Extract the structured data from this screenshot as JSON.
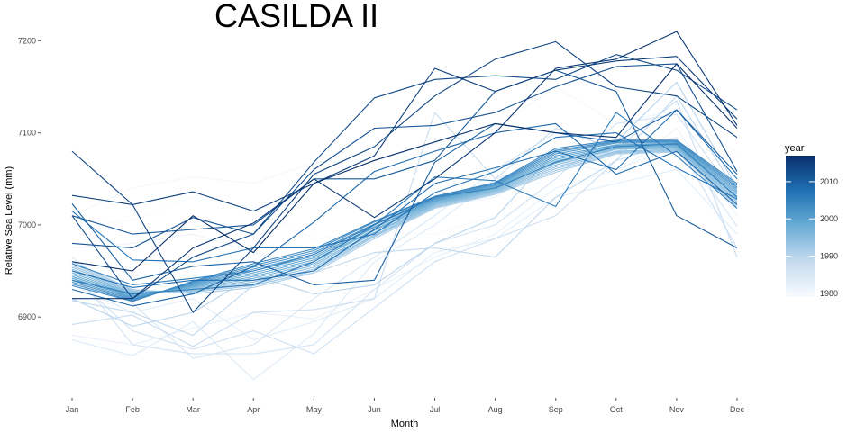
{
  "chart_data": {
    "type": "line",
    "title": "CASILDA II",
    "xlabel": "Month",
    "ylabel": "Relative Sea Level (mm)",
    "categories": [
      "Jan",
      "Feb",
      "Mar",
      "Apr",
      "May",
      "Jun",
      "Jul",
      "Aug",
      "Sep",
      "Oct",
      "Nov",
      "Dec"
    ],
    "ylim": [
      6820,
      7215
    ],
    "yticks": [
      6900,
      7000,
      7100,
      7200
    ],
    "grid": false,
    "legend": {
      "title": "year",
      "type": "continuous",
      "range": [
        1979,
        2017
      ],
      "ticks": [
        1980,
        1990,
        2000,
        2010
      ],
      "colors": [
        "#f7fbff",
        "#c6dbef",
        "#6baed6",
        "#2171b5",
        "#08306b"
      ],
      "placement": "right"
    },
    "series": [
      {
        "year": 1979,
        "values": [
          6998,
          7005,
          7030,
          7018,
          6985,
          6992,
          6990,
          7010,
          7060,
          7075,
          7085,
          7042
        ]
      },
      {
        "year": 1980,
        "values": [
          7010,
          7040,
          7052,
          7045,
          7068,
          7070,
          7088,
          7105,
          7150,
          7110,
          7125,
          7078
        ]
      },
      {
        "year": 1981,
        "values": [
          6975,
          6980,
          6990,
          6970,
          6950,
          6985,
          7020,
          7030,
          7070,
          7055,
          7105,
          7010
        ]
      },
      {
        "year": 1982,
        "values": [
          6880,
          6870,
          6888,
          6905,
          6898,
          6930,
          6965,
          6990,
          7040,
          7060,
          7085,
          7000
        ]
      },
      {
        "year": 1983,
        "values": [
          6935,
          6905,
          6920,
          6875,
          6895,
          6920,
          6970,
          6985,
          7030,
          7045,
          7060,
          6990
        ]
      },
      {
        "year": 1984,
        "values": [
          6875,
          6858,
          6895,
          6832,
          6882,
          6960,
          7000,
          7050,
          7070,
          7080,
          7095,
          6998
        ]
      },
      {
        "year": 1985,
        "values": [
          6965,
          6915,
          6855,
          6870,
          6920,
          6965,
          7010,
          7060,
          7100,
          7090,
          7080,
          7020
        ]
      },
      {
        "year": 1986,
        "values": [
          6952,
          6870,
          6860,
          6860,
          6870,
          6930,
          6980,
          7000,
          7050,
          7110,
          7120,
          7030
        ]
      },
      {
        "year": 1987,
        "values": [
          6945,
          6885,
          6865,
          6885,
          6860,
          6910,
          6960,
          6985,
          7010,
          7070,
          7090,
          6975
        ]
      },
      {
        "year": 1988,
        "values": [
          6892,
          6902,
          6868,
          6905,
          6908,
          6920,
          7122,
          7050,
          7105,
          7082,
          7135,
          6965
        ]
      },
      {
        "year": 1989,
        "values": [
          6918,
          6905,
          6880,
          6935,
          6948,
          6970,
          6975,
          6965,
          7030,
          7070,
          7140,
          7035
        ]
      },
      {
        "year": 1990,
        "values": [
          6920,
          6890,
          6905,
          6945,
          6925,
          6935,
          6980,
          7008,
          7080,
          7090,
          7155,
          7040
        ]
      },
      {
        "year": 1991,
        "values": [
          6960,
          6930,
          6925,
          6932,
          6948,
          6985,
          7018,
          7033,
          7057,
          7077,
          7079,
          7019
        ]
      },
      {
        "year": 1992,
        "values": [
          6958,
          6929,
          6927,
          6934,
          6950,
          6987,
          7019,
          7034,
          7059,
          7078,
          7080,
          7021
        ]
      },
      {
        "year": 1993,
        "values": [
          6956,
          6928,
          6928,
          6936,
          6952,
          6988,
          7020,
          7035,
          7061,
          7079,
          7081,
          7023
        ]
      },
      {
        "year": 1994,
        "values": [
          6954,
          6927,
          6929,
          6938,
          6954,
          6989,
          7021,
          7036,
          7063,
          7080,
          7082,
          7025
        ]
      },
      {
        "year": 1995,
        "values": [
          6952,
          6926,
          6930,
          6940,
          6956,
          6991,
          7022,
          7037,
          7065,
          7082,
          7083,
          7027
        ]
      },
      {
        "year": 1996,
        "values": [
          6950,
          6925,
          6931,
          6942,
          6958,
          6992,
          7023,
          7038,
          7067,
          7083,
          7084,
          7029
        ]
      },
      {
        "year": 1997,
        "values": [
          6948,
          6924,
          6932,
          6944,
          6960,
          6994,
          7024,
          7039,
          7069,
          7084,
          7085,
          7031
        ]
      },
      {
        "year": 1998,
        "values": [
          6946,
          6923,
          6933,
          6946,
          6962,
          6995,
          7025,
          7040,
          7071,
          7085,
          7086,
          7033
        ]
      },
      {
        "year": 1999,
        "values": [
          6944,
          6922,
          6934,
          6948,
          6964,
          6997,
          7026,
          7041,
          7073,
          7086,
          7087,
          7035
        ]
      },
      {
        "year": 2000,
        "values": [
          6942,
          6921,
          6935,
          6950,
          6966,
          6998,
          7027,
          7042,
          7075,
          7087,
          7088,
          7037
        ]
      },
      {
        "year": 2001,
        "values": [
          6940,
          6920,
          6936,
          6952,
          6968,
          7000,
          7028,
          7043,
          7077,
          7089,
          7089,
          7039
        ]
      },
      {
        "year": 2002,
        "values": [
          6938,
          6919,
          6937,
          6954,
          6970,
          7001,
          7029,
          7044,
          7079,
          7090,
          7090,
          7041
        ]
      },
      {
        "year": 2003,
        "values": [
          6936,
          6918,
          6938,
          6956,
          6972,
          7003,
          7030,
          7045,
          7081,
          7091,
          7091,
          7043
        ]
      },
      {
        "year": 2004,
        "values": [
          6934,
          6917,
          6939,
          6958,
          6974,
          7004,
          7031,
          7046,
          7083,
          7092,
          7092,
          7045
        ]
      },
      {
        "year": 2005,
        "values": [
          6958,
          6935,
          6942,
          6950,
          6968,
          7000,
          7030,
          7040,
          7068,
          7085,
          7088,
          7030
        ]
      },
      {
        "year": 2006,
        "values": [
          6940,
          6925,
          6930,
          6935,
          6960,
          7000,
          7052,
          7048,
          7020,
          7122,
          7075,
          7018
        ]
      },
      {
        "year": 2007,
        "values": [
          7015,
          6962,
          6960,
          6975,
          6975,
          6990,
          7035,
          7058,
          7095,
          7100,
          7062,
          7028
        ]
      },
      {
        "year": 2008,
        "values": [
          6950,
          6932,
          6940,
          6940,
          6950,
          6995,
          7045,
          7062,
          7080,
          7060,
          7125,
          7050
        ]
      },
      {
        "year": 2009,
        "values": [
          6930,
          6912,
          6925,
          6955,
          7003,
          7058,
          7080,
          7100,
          7110,
          7055,
          7080,
          7022
        ]
      },
      {
        "year": 2010,
        "values": [
          7023,
          6940,
          6955,
          6960,
          6935,
          6940,
          7068,
          7110,
          7100,
          7090,
          7125,
          7055
        ]
      },
      {
        "year": 2011,
        "values": [
          7010,
          6990,
          6995,
          7000,
          7050,
          7050,
          7070,
          7145,
          7168,
          7145,
          7010,
          6975
        ]
      },
      {
        "year": 2012,
        "values": [
          6980,
          6975,
          7008,
          6990,
          7060,
          7105,
          7108,
          7122,
          7150,
          7172,
          7175,
          7058
        ]
      },
      {
        "year": 2013,
        "values": [
          7010,
          6920,
          6965,
          6990,
          7068,
          7138,
          7158,
          7162,
          7158,
          7185,
          7168,
          7125
        ]
      },
      {
        "year": 2014,
        "values": [
          7080,
          7022,
          6905,
          6975,
          7055,
          7085,
          7140,
          7180,
          7199,
          7150,
          7140,
          7095
        ]
      },
      {
        "year": 2015,
        "values": [
          7032,
          7022,
          7036,
          7015,
          7045,
          7075,
          7170,
          7145,
          7168,
          7178,
          7183,
          7115
        ]
      },
      {
        "year": 2016,
        "values": [
          6920,
          6920,
          6975,
          7002,
          7050,
          7008,
          7050,
          7100,
          7170,
          7180,
          7210,
          7108
        ]
      },
      {
        "year": 2017,
        "values": [
          6960,
          6950,
          7010,
          6970,
          7045,
          7070,
          7090,
          7110,
          7100,
          7095,
          7175,
          7105
        ]
      }
    ]
  }
}
